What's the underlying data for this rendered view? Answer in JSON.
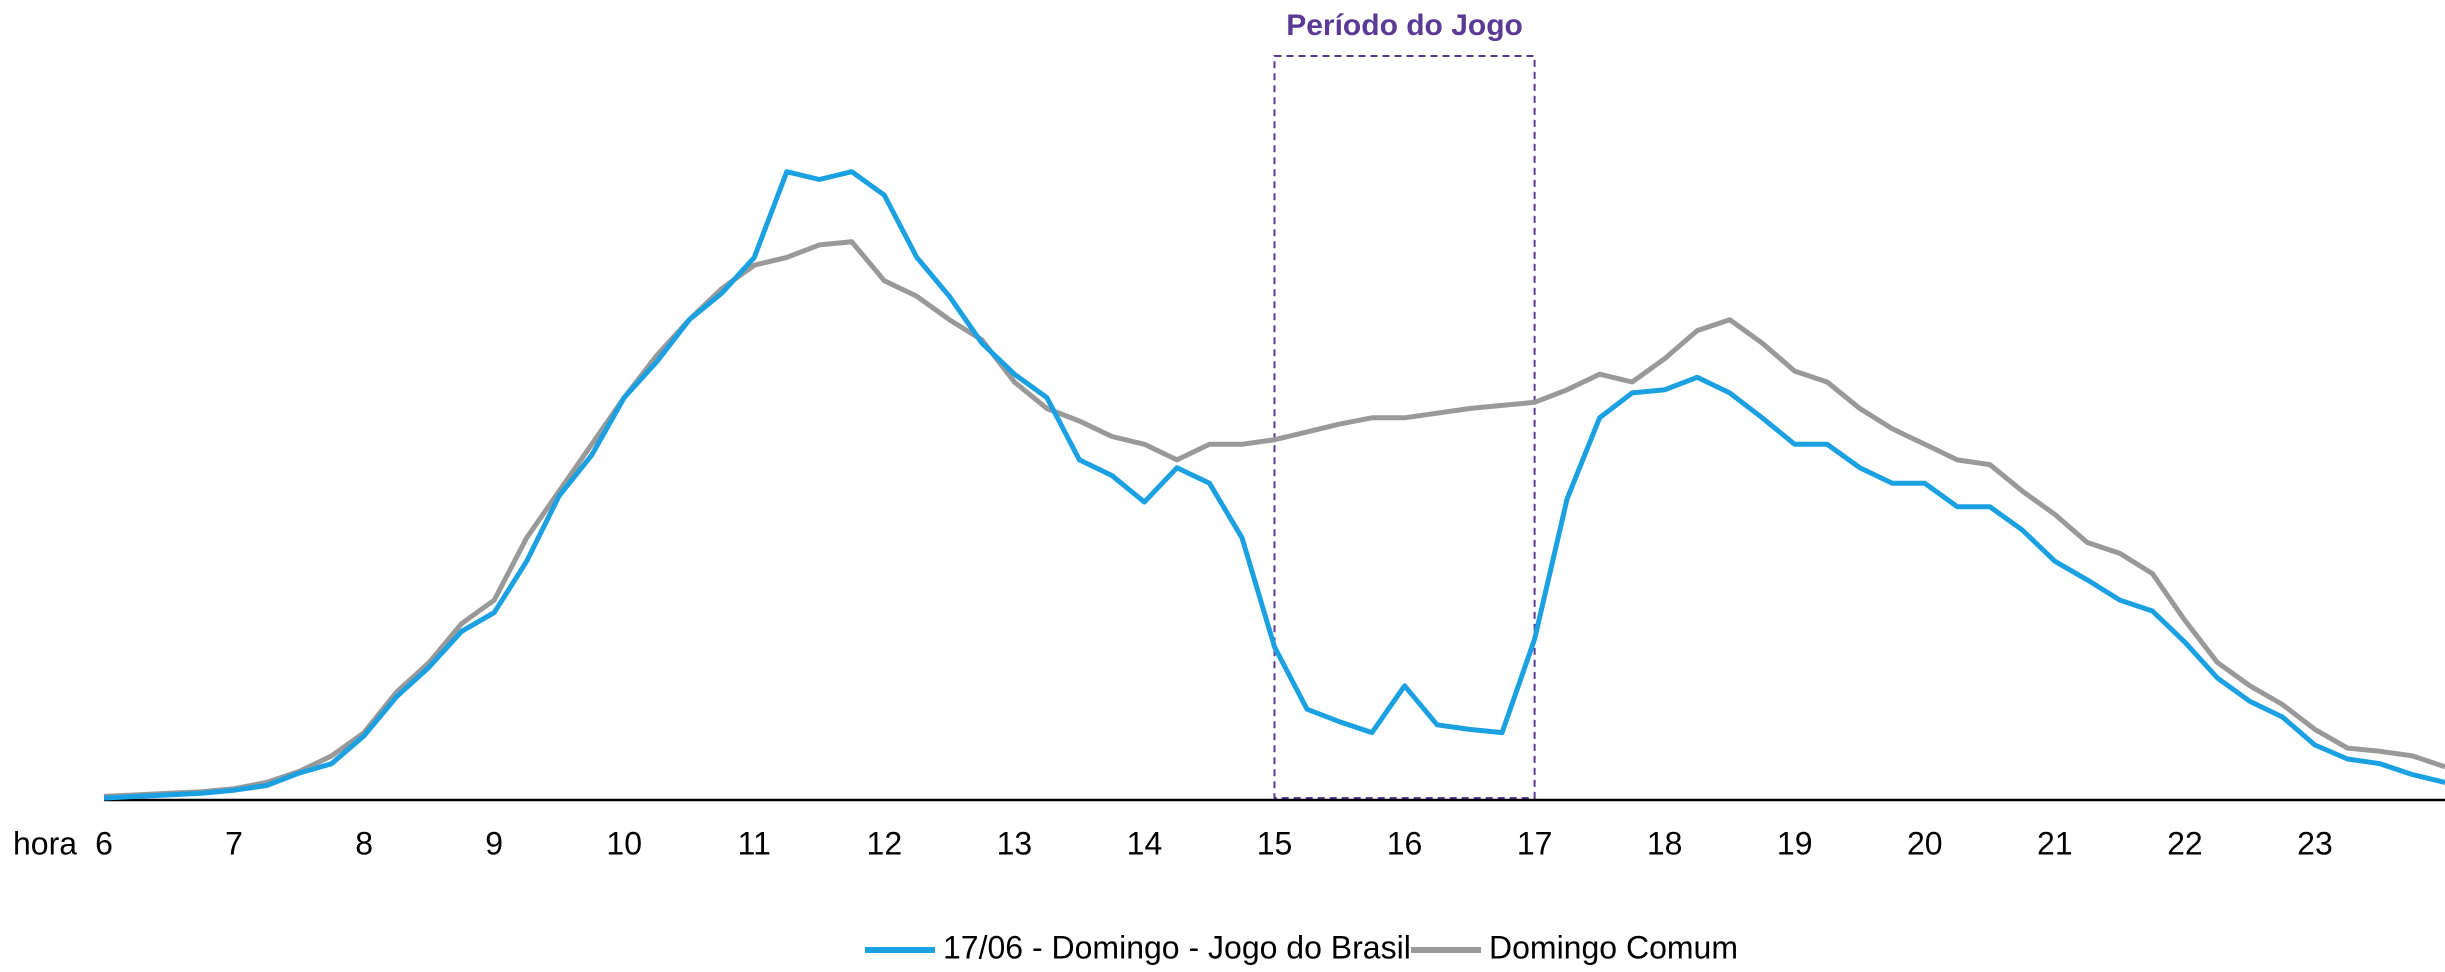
{
  "chart_data": {
    "type": "line",
    "x_label": "hora",
    "annotation": {
      "text": "Período do Jogo",
      "x": [
        15,
        17
      ],
      "color": "#5b3a96"
    },
    "x": [
      6,
      6.25,
      6.5,
      6.75,
      7,
      7.25,
      7.5,
      7.75,
      8,
      8.25,
      8.5,
      8.75,
      9,
      9.25,
      9.5,
      9.75,
      10,
      10.25,
      10.5,
      10.75,
      11,
      11.25,
      11.5,
      11.75,
      12,
      12.25,
      12.5,
      12.75,
      13,
      13.25,
      13.5,
      13.75,
      14,
      14.25,
      14.5,
      14.75,
      15,
      15.25,
      15.5,
      15.75,
      16,
      16.25,
      16.5,
      16.75,
      17,
      17.25,
      17.5,
      17.75,
      18,
      18.25,
      18.5,
      18.75,
      19,
      19.25,
      19.5,
      19.75,
      20,
      20.25,
      20.5,
      20.75,
      21,
      21.25,
      21.5,
      21.75,
      22,
      22.25,
      22.5,
      22.75,
      23,
      23.25,
      23.5,
      23.75,
      24
    ],
    "series": [
      {
        "name": "17/06 - Domingo - Jogo do Brasil",
        "color": "#1ba1e2",
        "values": [
          0,
          1,
          2,
          3,
          5,
          8,
          16,
          22,
          40,
          65,
          84,
          107,
          119,
          152,
          194,
          220,
          257,
          280,
          307,
          324,
          347,
          402,
          397,
          402,
          387,
          347,
          322,
          292,
          272,
          257,
          217,
          207,
          190,
          212,
          202,
          167,
          97,
          57,
          49,
          42,
          72,
          47,
          44,
          42,
          102,
          192,
          244,
          260,
          262,
          270,
          260,
          244,
          227,
          227,
          212,
          202,
          202,
          187,
          187,
          172,
          152,
          140,
          127,
          120,
          100,
          77,
          62,
          52,
          34,
          25,
          22,
          15,
          10
        ]
      },
      {
        "name": "Domingo Comum",
        "color": "#999999",
        "values": [
          1,
          2,
          3,
          4,
          6,
          10,
          17,
          27,
          42,
          68,
          87,
          112,
          127,
          167,
          197,
          227,
          257,
          284,
          307,
          327,
          342,
          347,
          355,
          357,
          332,
          322,
          307,
          294,
          267,
          250,
          242,
          232,
          227,
          217,
          227,
          227,
          230,
          235,
          240,
          244,
          244,
          247,
          250,
          252,
          254,
          262,
          272,
          267,
          282,
          300,
          307,
          292,
          274,
          267,
          250,
          237,
          227,
          217,
          214,
          197,
          182,
          164,
          157,
          144,
          114,
          87,
          72,
          60,
          44,
          32,
          30,
          27,
          20
        ]
      }
    ],
    "xlim": [
      6,
      24
    ],
    "ylim": [
      0,
      500
    ],
    "xticks": [
      6,
      7,
      8,
      9,
      10,
      11,
      12,
      13,
      14,
      15,
      16,
      17,
      18,
      19,
      20,
      21,
      22,
      23
    ],
    "legend": "bottom"
  }
}
